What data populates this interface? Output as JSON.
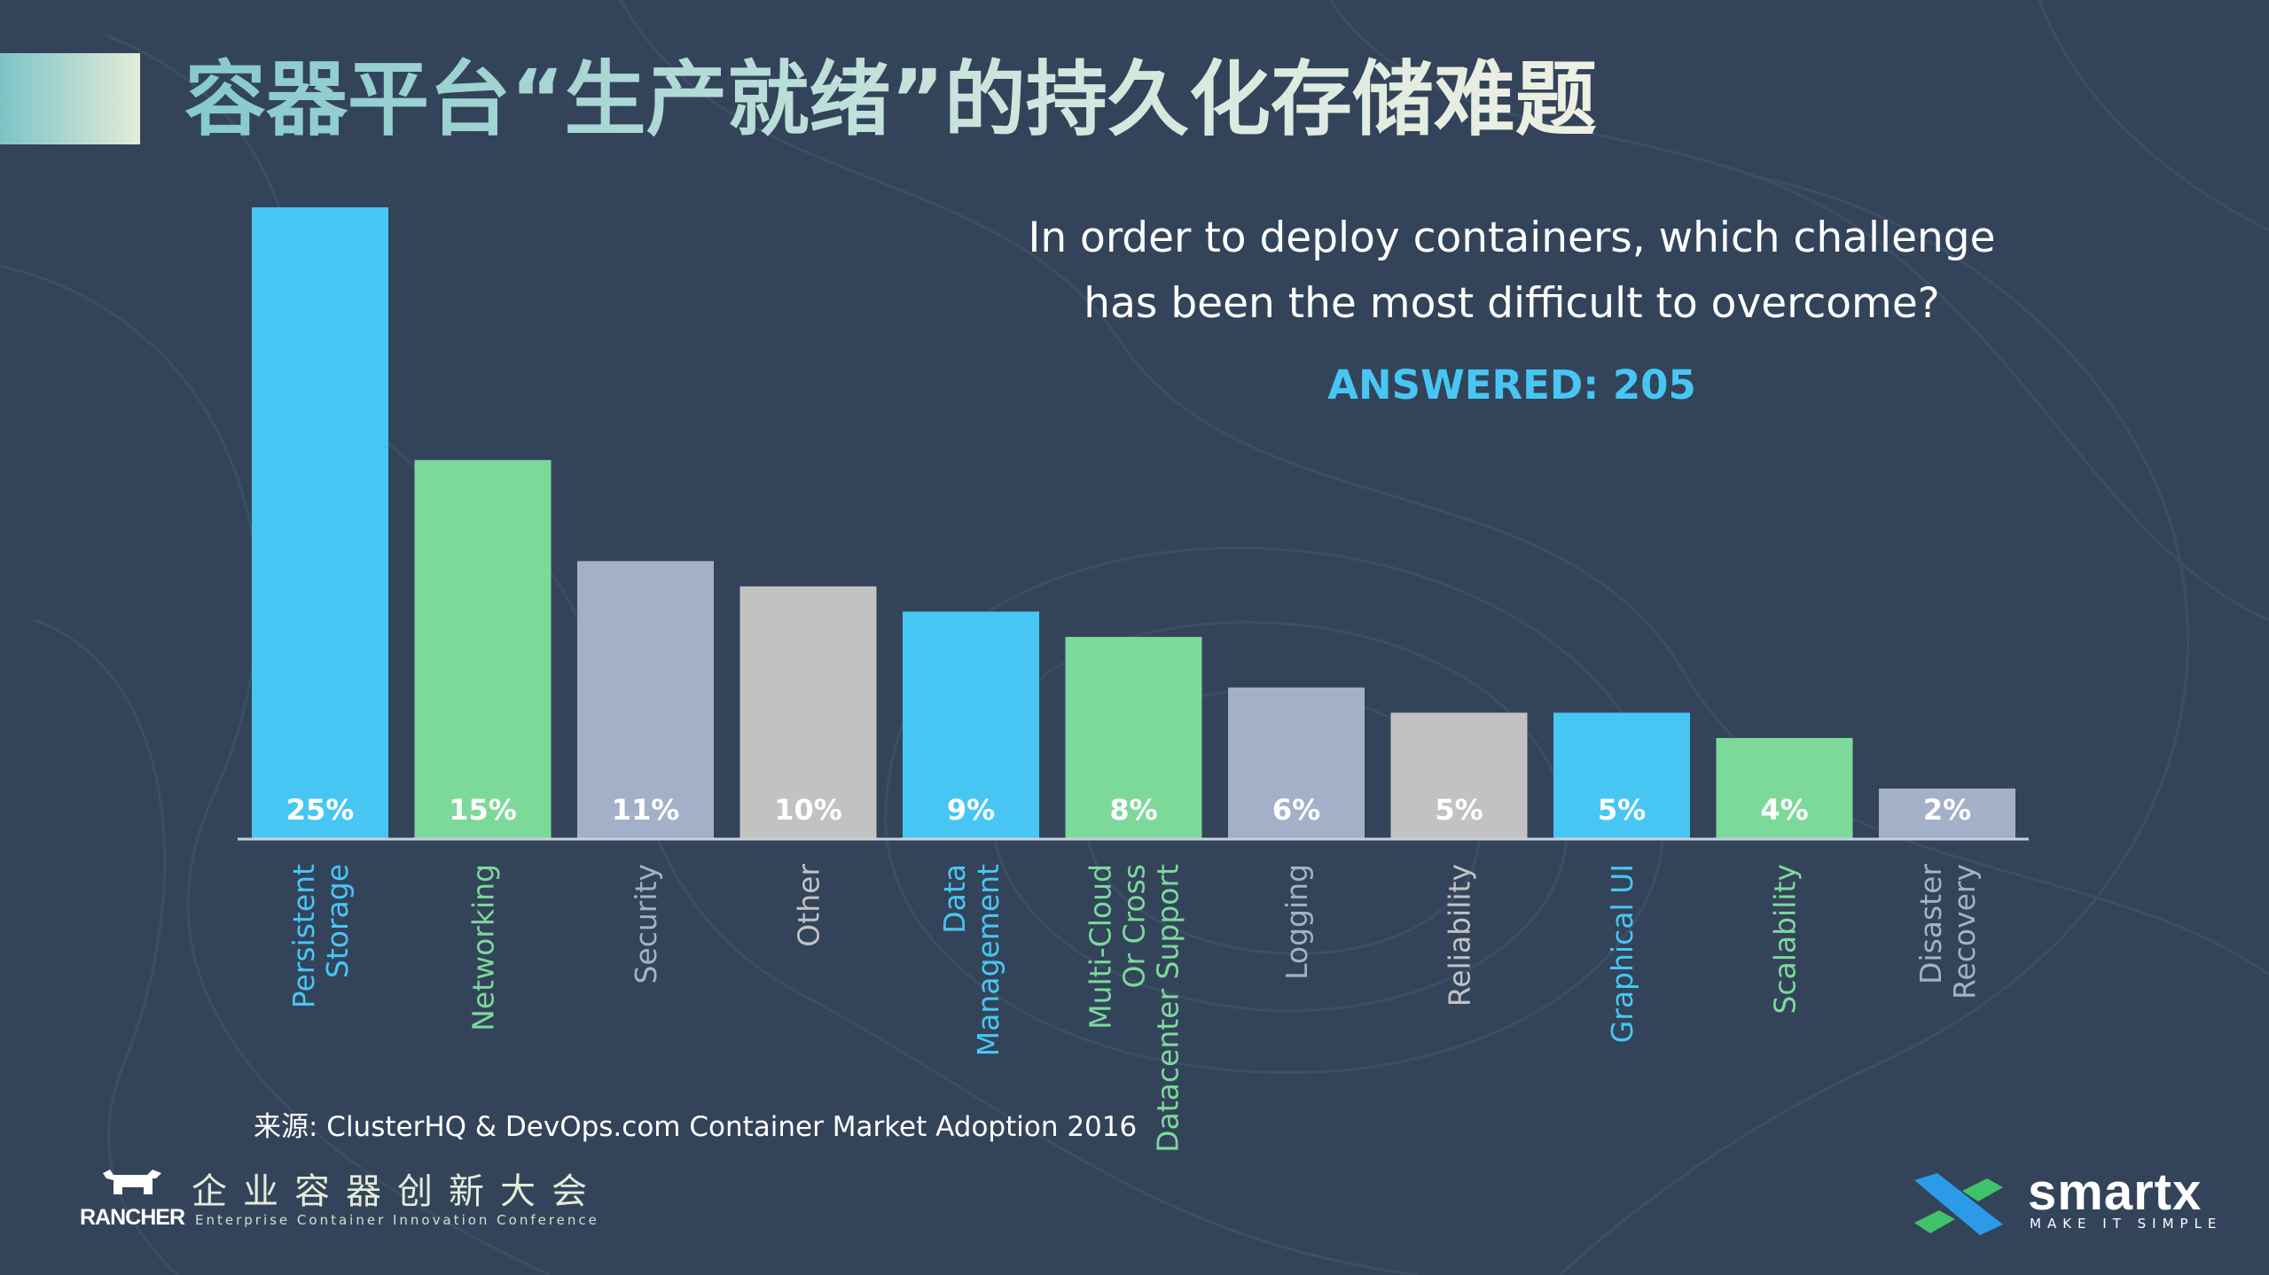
{
  "title": "容器平台“生产就绪”的持久化存储难题",
  "question": {
    "line1": "In order to deploy containers, which challenge",
    "line2": "has been the most difficult to overcome?"
  },
  "answered": "ANSWERED: 205",
  "source": "来源: ClusterHQ & DevOps.com Container Market Adoption 2016",
  "footer": {
    "rancher": "RANCHER",
    "conference_cn": "企业容器创新大会",
    "conference_en": "Enterprise Container Innovation Conference",
    "smartx": "smartx",
    "smartx_tagline": "MAKE IT SIMPLE"
  },
  "colors": {
    "background": "#33445a",
    "blue": "#48c6f3",
    "green": "#7cd99a",
    "slate": "#a3b0c8",
    "gray": "#c2c2c2",
    "axis": "#c8d0dc"
  },
  "chart_data": {
    "type": "bar",
    "title": "In order to deploy containers, which challenge has been the most difficult to overcome?",
    "unit": "%",
    "ylim": [
      0,
      25
    ],
    "categories": [
      [
        "Persistent",
        "Storage"
      ],
      [
        "Networking"
      ],
      [
        "Security"
      ],
      [
        "Other"
      ],
      [
        "Data",
        "Management"
      ],
      [
        "Multi-Cloud",
        "Or Cross",
        "Datacenter Support"
      ],
      [
        "Logging"
      ],
      [
        "Reliability"
      ],
      [
        "Graphical UI"
      ],
      [
        "Scalability"
      ],
      [
        "Disaster",
        "Recovery"
      ]
    ],
    "values": [
      25,
      15,
      11,
      10,
      9,
      8,
      6,
      5,
      5,
      4,
      2
    ],
    "bar_colors": [
      "#48c6f3",
      "#7cd99a",
      "#a3b0c8",
      "#c2c2c2",
      "#48c6f3",
      "#7cd99a",
      "#a3b0c8",
      "#c2c2c2",
      "#48c6f3",
      "#7cd99a",
      "#a3b0c8"
    ]
  }
}
